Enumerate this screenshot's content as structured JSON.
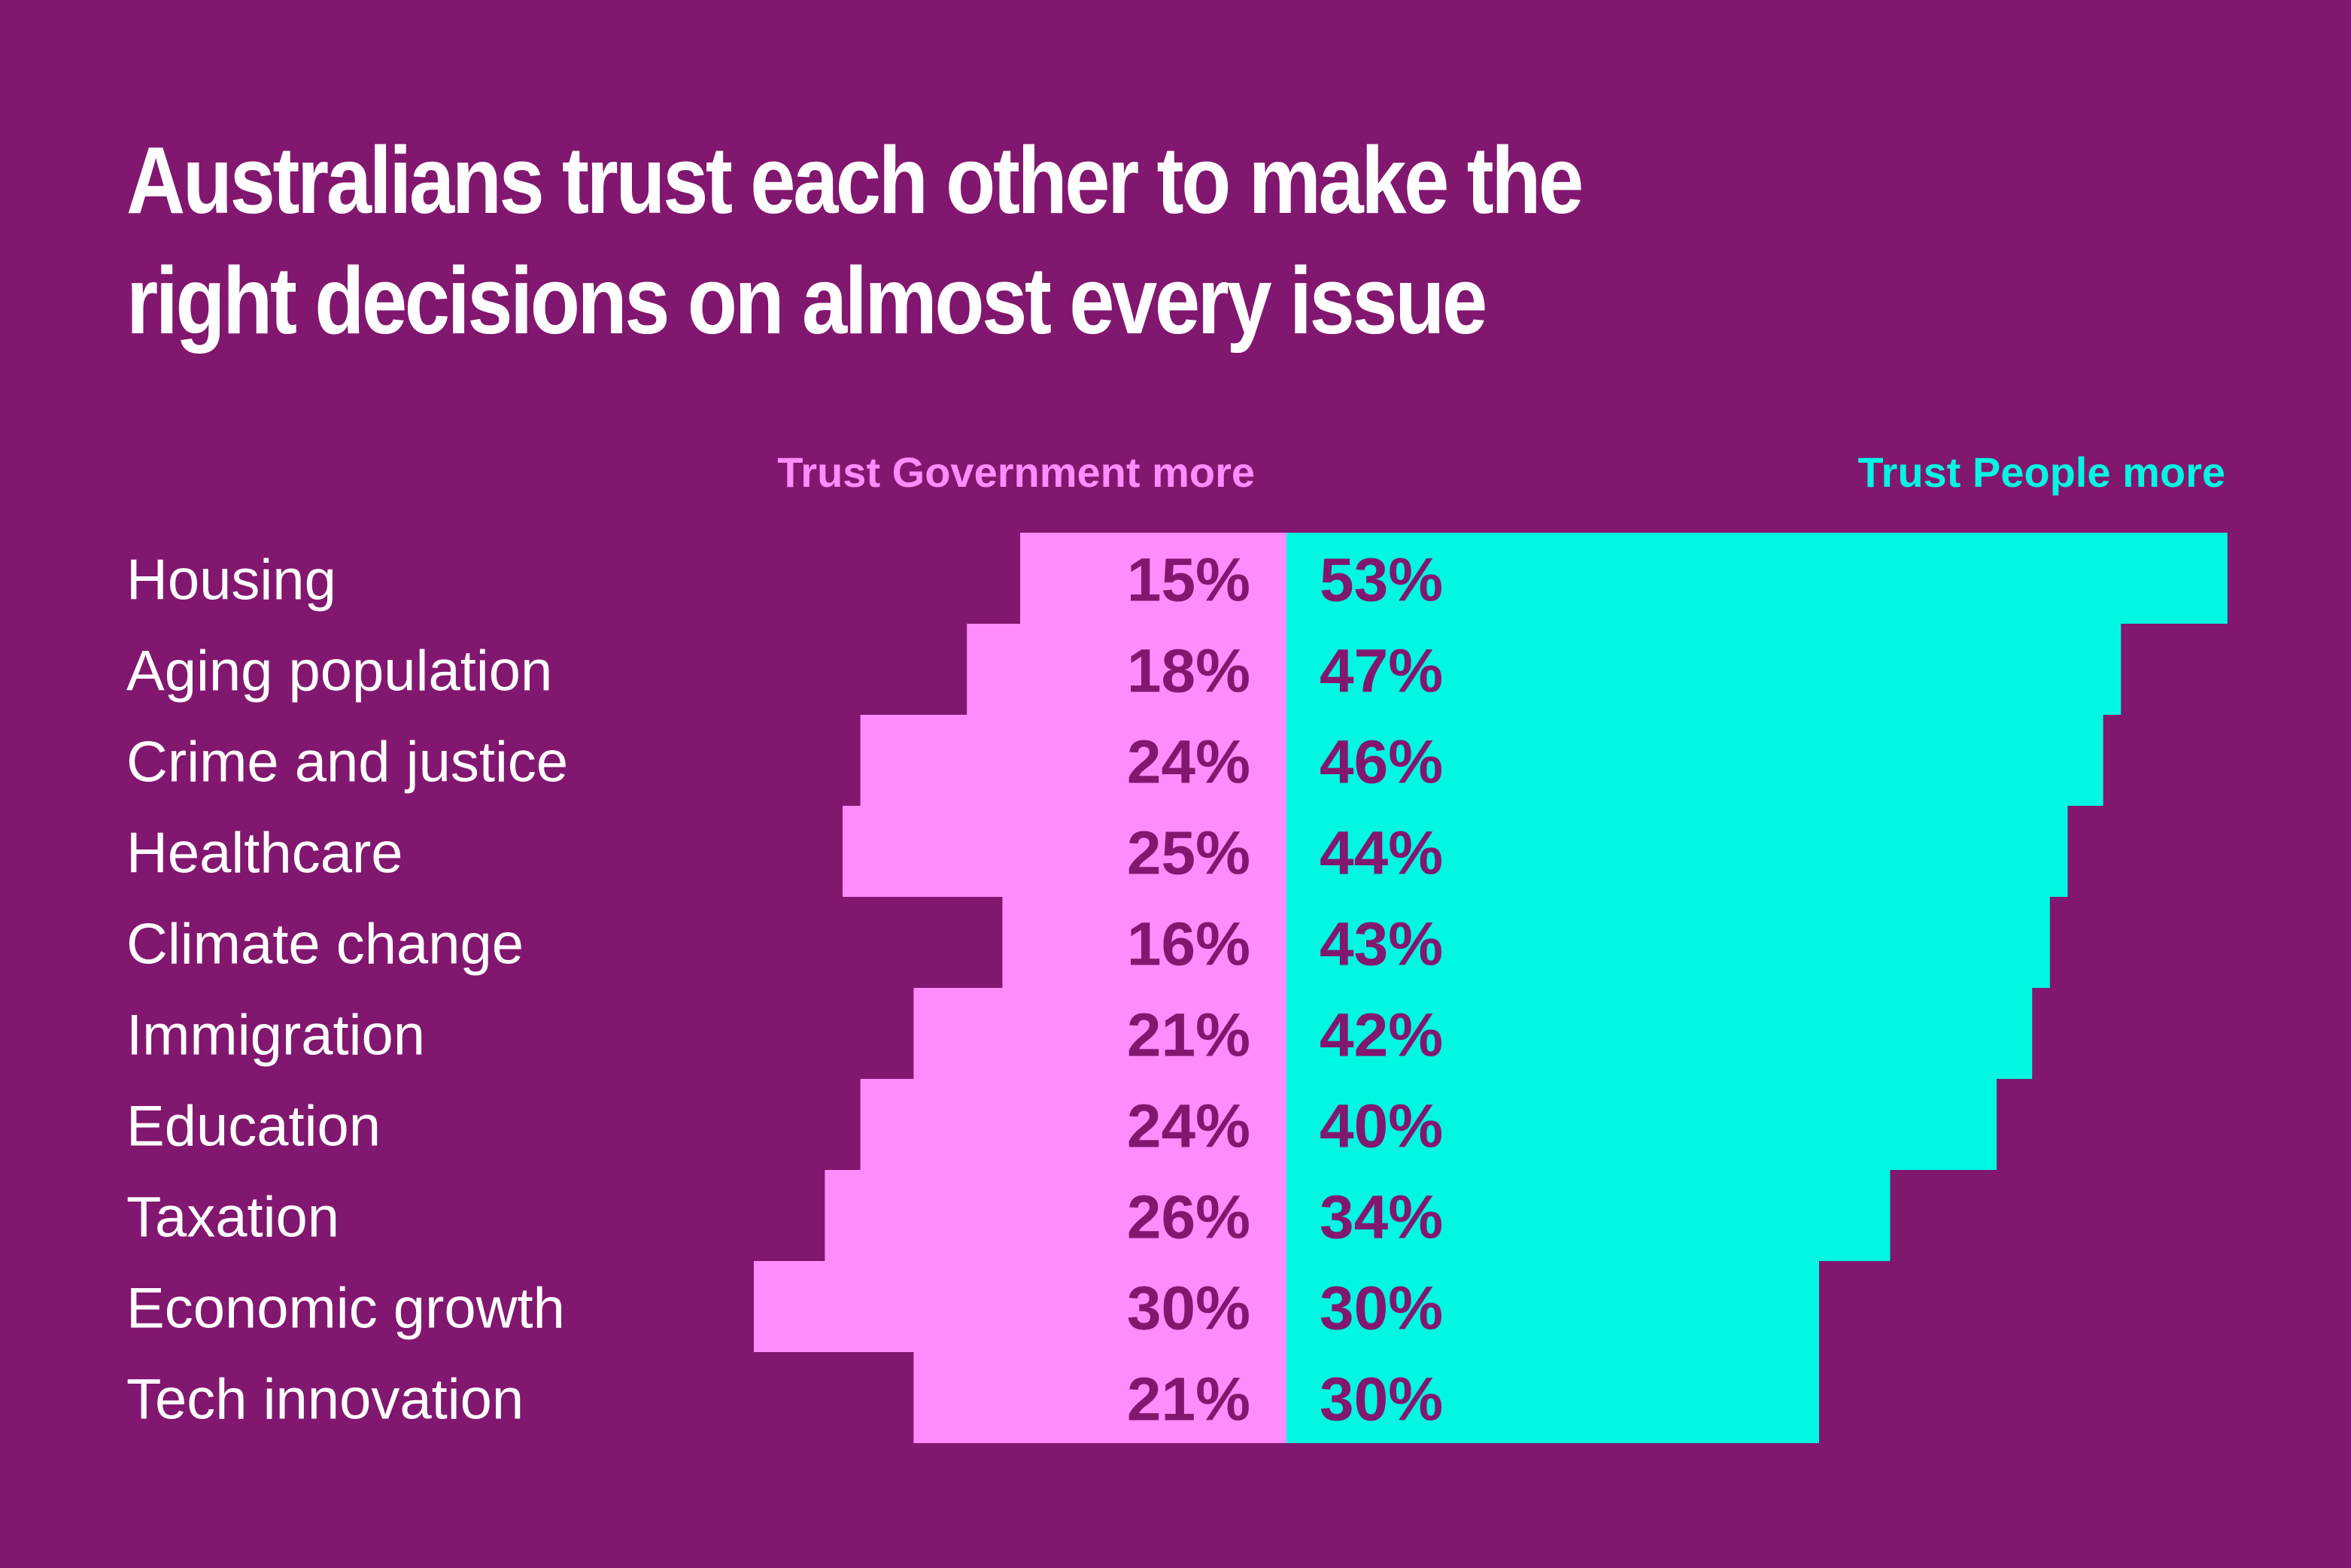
{
  "title_lines": [
    "Australians trust each other to make the",
    "right decisions on almost every issue"
  ],
  "colors": {
    "background": "#82176f",
    "government": "#ff8cfc",
    "people": "#00f7e1",
    "value_text": "#82176f",
    "title_text": "#ffffff"
  },
  "chart_data": {
    "type": "bar",
    "orientation": "horizontal",
    "layout": "diverging",
    "title": "Australians trust each other to make the right decisions on almost every issue",
    "legend": {
      "left": "Trust Government more",
      "right": "Trust People more",
      "placement": "top"
    },
    "categories": [
      "Housing",
      "Aging population",
      "Crime and justice",
      "Healthcare",
      "Climate change",
      "Immigration",
      "Education",
      "Taxation",
      "Economic growth",
      "Tech innovation"
    ],
    "series": [
      {
        "name": "Trust Government more",
        "direction": "left",
        "values": [
          15,
          18,
          24,
          25,
          16,
          21,
          24,
          26,
          30,
          21
        ],
        "labels": [
          "15%",
          "18%",
          "24%",
          "25%",
          "16%",
          "21%",
          "24%",
          "26%",
          "30%",
          "21%"
        ]
      },
      {
        "name": "Trust People more",
        "direction": "right",
        "values": [
          53,
          47,
          46,
          44,
          43,
          42,
          40,
          34,
          30,
          30
        ],
        "labels": [
          "53%",
          "47%",
          "46%",
          "44%",
          "43%",
          "42%",
          "40%",
          "34%",
          "30%",
          "30%"
        ]
      }
    ],
    "unit": "%",
    "grid": false
  }
}
